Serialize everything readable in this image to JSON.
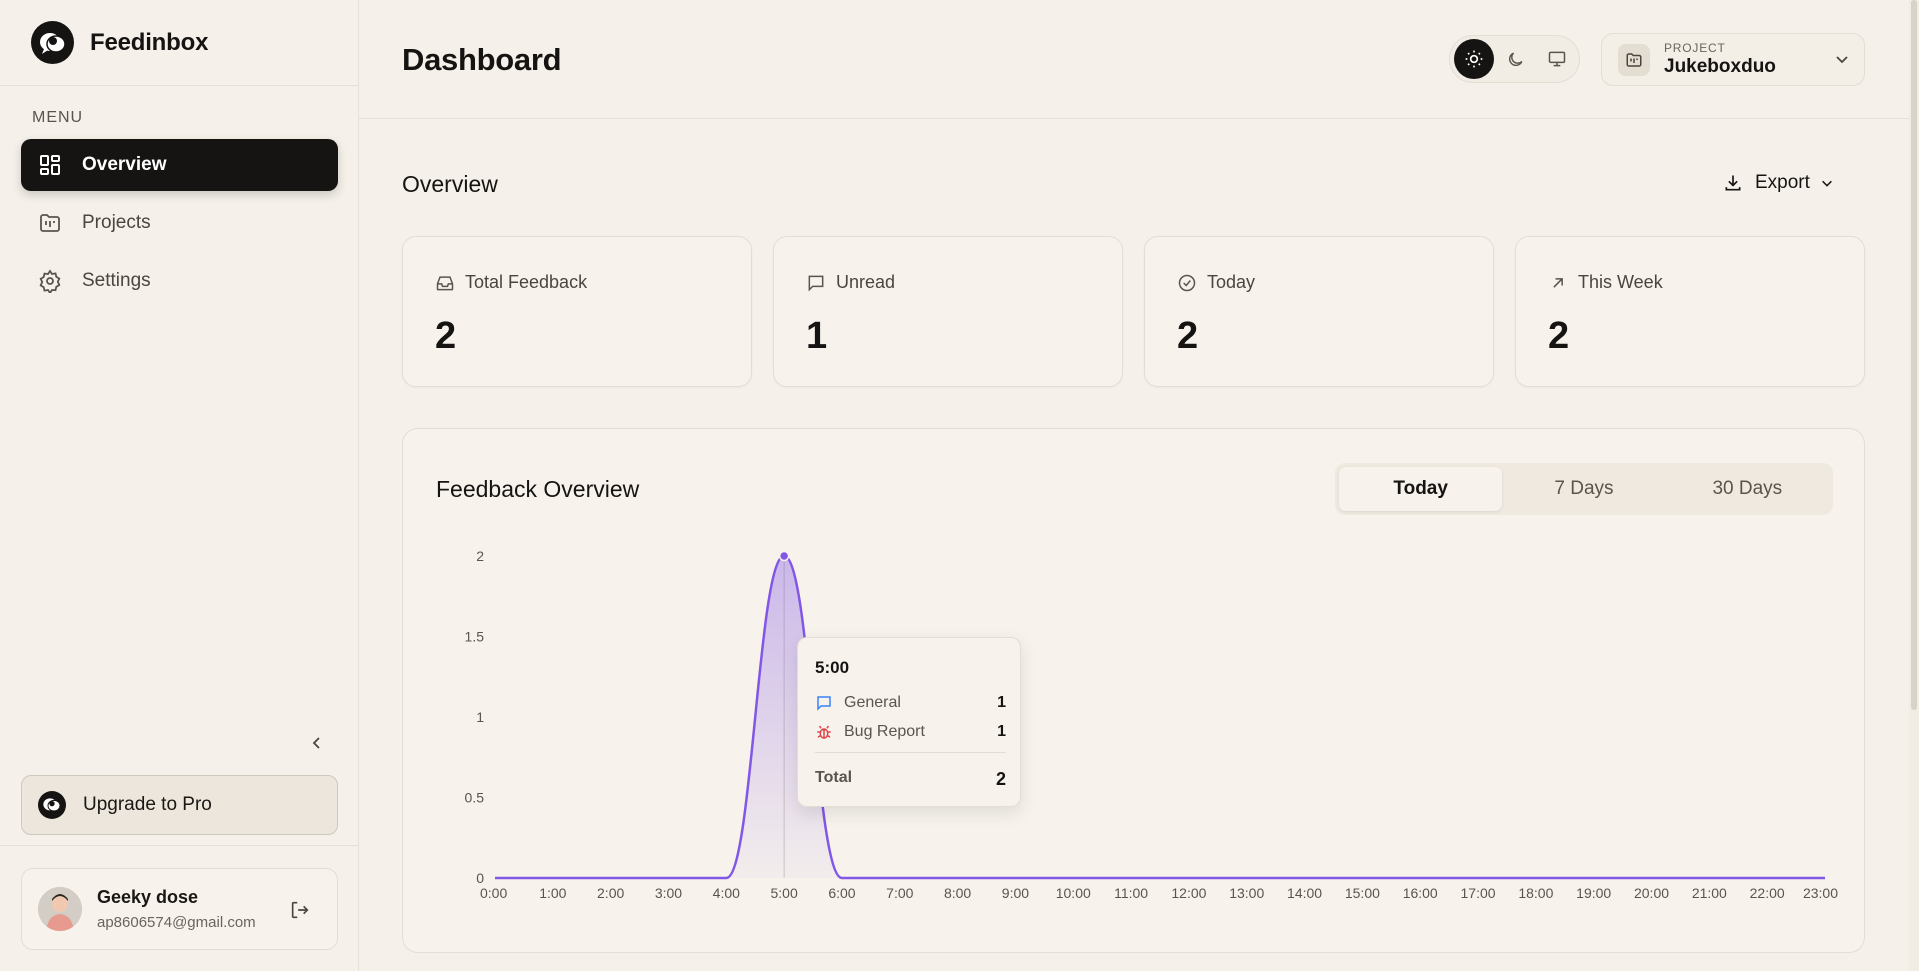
{
  "brand": {
    "name": "Feedinbox"
  },
  "sidebar": {
    "menu_heading": "MENU",
    "items": [
      {
        "label": "Overview",
        "icon": "grid-icon",
        "active": true
      },
      {
        "label": "Projects",
        "icon": "folder-kanban-icon",
        "active": false
      },
      {
        "label": "Settings",
        "icon": "gear-icon",
        "active": false
      }
    ],
    "upgrade_label": "Upgrade to Pro",
    "user": {
      "name": "Geeky dose",
      "email": "ap8606574@gmail.com"
    }
  },
  "header": {
    "title": "Dashboard",
    "theme_modes": [
      "light",
      "dark",
      "system"
    ],
    "active_theme": "light",
    "project": {
      "caption": "PROJECT",
      "name": "Jukeboxduo"
    }
  },
  "overview": {
    "title": "Overview",
    "export_label": "Export",
    "stats": [
      {
        "label": "Total Feedback",
        "value": "2",
        "icon": "inbox-icon"
      },
      {
        "label": "Unread",
        "value": "1",
        "icon": "message-square-icon"
      },
      {
        "label": "Today",
        "value": "2",
        "icon": "check-circle-icon"
      },
      {
        "label": "This Week",
        "value": "2",
        "icon": "arrow-up-right-icon"
      }
    ]
  },
  "feedback_chart": {
    "title": "Feedback Overview",
    "tabs": [
      {
        "label": "Today",
        "active": true
      },
      {
        "label": "7 Days",
        "active": false
      },
      {
        "label": "30 Days",
        "active": false
      }
    ],
    "accent_color": "#8257e6"
  },
  "chart_data": {
    "type": "area",
    "title": "",
    "xlabel": "",
    "ylabel": "",
    "x": [
      "0:00",
      "1:00",
      "2:00",
      "3:00",
      "4:00",
      "5:00",
      "6:00",
      "7:00",
      "8:00",
      "9:00",
      "10:00",
      "11:00",
      "12:00",
      "13:00",
      "14:00",
      "15:00",
      "16:00",
      "17:00",
      "18:00",
      "19:00",
      "20:00",
      "21:00",
      "22:00",
      "23:00"
    ],
    "series": [
      {
        "values": [
          0,
          0,
          0,
          0,
          0,
          2,
          0,
          0,
          0,
          0,
          0,
          0,
          0,
          0,
          0,
          0,
          0,
          0,
          0,
          0,
          0,
          0,
          0,
          0
        ]
      }
    ],
    "yticks": [
      "0",
      "0.5",
      "1",
      "1.5",
      "2"
    ],
    "ylim": [
      0,
      2
    ],
    "grid": false,
    "tooltip": {
      "x": "5:00",
      "rows": [
        {
          "label": "General",
          "value": "1",
          "icon": "message-square-icon"
        },
        {
          "label": "Bug Report",
          "value": "1",
          "icon": "bug-icon"
        }
      ],
      "total_label": "Total",
      "total_value": "2"
    }
  }
}
